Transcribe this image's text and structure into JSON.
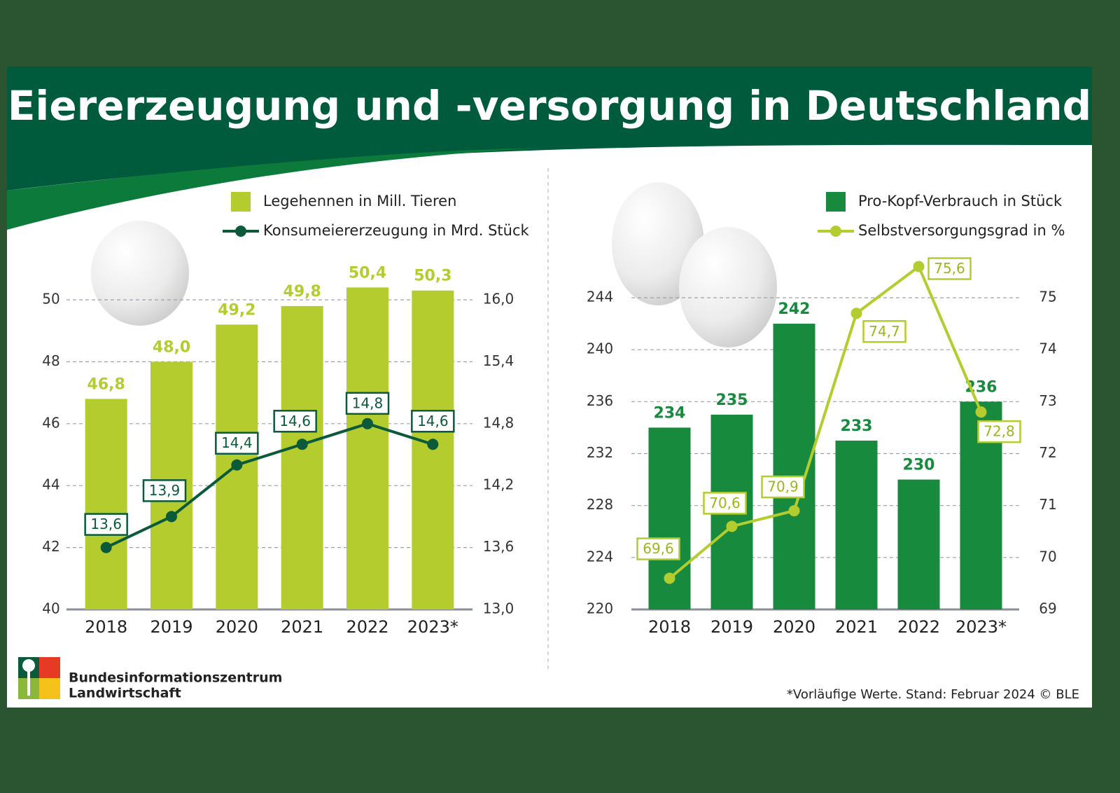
{
  "header": {
    "title": "Eiererzeugung und -versorgung in Deutschland"
  },
  "chart_data": [
    {
      "type": "bar",
      "categories": [
        "2018",
        "2019",
        "2020",
        "2021",
        "2022",
        "2023*"
      ],
      "series": [
        {
          "name": "Legehennen in Mill. Tieren",
          "color": "#b5cc2e",
          "values": [
            46.8,
            48.0,
            49.2,
            49.8,
            50.4,
            50.3
          ],
          "value_labels": [
            "46,8",
            "48,0",
            "49,2",
            "49,8",
            "50,4",
            "50,3"
          ]
        },
        {
          "name": "Konsumeiererzeugung in Mrd. Stück",
          "type": "line",
          "axis": "y2",
          "color": "#0b5a3a",
          "values": [
            13.6,
            13.9,
            14.4,
            14.6,
            14.8,
            14.6
          ],
          "value_labels": [
            "13,6",
            "13,9",
            "14,4",
            "14,6",
            "14,8",
            "14,6"
          ]
        }
      ],
      "ylim": [
        40,
        50
      ],
      "yticks": [
        40,
        42,
        44,
        46,
        48,
        50
      ],
      "y2lim": [
        13,
        16
      ],
      "y2ticks": [
        {
          "value": 13.0,
          "label": "13,0"
        },
        {
          "value": 13.6,
          "label": "13,6"
        },
        {
          "value": 14.2,
          "label": "14,2"
        },
        {
          "value": 14.8,
          "label": "14,8"
        },
        {
          "value": 15.4,
          "label": "15,4"
        },
        {
          "value": 16.0,
          "label": "16,0"
        }
      ],
      "grid": true
    },
    {
      "type": "bar",
      "categories": [
        "2018",
        "2019",
        "2020",
        "2021",
        "2022",
        "2023*"
      ],
      "series": [
        {
          "name": "Pro-Kopf-Verbrauch in Stück",
          "color": "#178a3e",
          "values": [
            234,
            235,
            242,
            233,
            230,
            236
          ]
        },
        {
          "name": "Selbstversorgungsgrad in %",
          "type": "line",
          "axis": "y2",
          "color": "#b5cc2e",
          "values": [
            69.6,
            70.6,
            70.9,
            74.7,
            75.6,
            72.8
          ],
          "value_labels": [
            "69,6",
            "70,6",
            "70,9",
            "74,7",
            "75,6",
            "72,8"
          ]
        }
      ],
      "ylim": [
        220,
        244
      ],
      "yticks": [
        220,
        224,
        228,
        232,
        236,
        240,
        244
      ],
      "y2lim": [
        69,
        75
      ],
      "y2ticks": [
        69,
        70,
        71,
        72,
        73,
        74,
        75
      ],
      "grid": true
    }
  ],
  "footer": {
    "org": [
      "Bundesinformationszentrum",
      "Landwirtschaft"
    ],
    "note": "*Vorläufige Werte. Stand: Februar 2024 © BLE"
  }
}
